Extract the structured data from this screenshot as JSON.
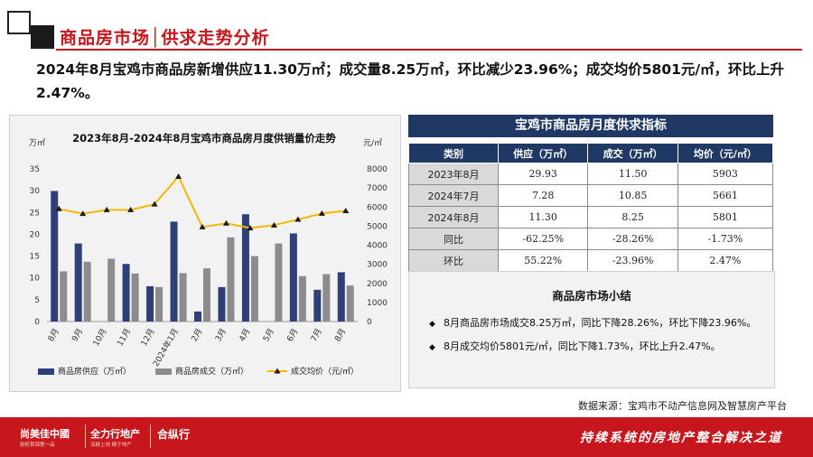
{
  "header": {
    "title": "商品房市场│供求走势分析"
  },
  "headline": "2024年8月宝鸡市商品房新增供应11.30万㎡；成交量8.25万㎡，环比减少23.96%；成交均价5801元/㎡，环比上升2.47%。",
  "chart_data": {
    "type": "bar+line",
    "title": "2023年8月-2024年8月宝鸡市商品房月度供销量价走势",
    "y_left_unit": "万㎡",
    "y_right_unit": "元/㎡",
    "y_left_range": [
      0,
      35
    ],
    "y_left_ticks": [
      "0",
      "5",
      "10",
      "15",
      "20",
      "25",
      "30",
      "35"
    ],
    "y_right_range": [
      0,
      8000
    ],
    "y_right_ticks": [
      "0",
      "1000",
      "2000",
      "3000",
      "4000",
      "5000",
      "6000",
      "7000",
      "8000"
    ],
    "categories": [
      "8月",
      "9月",
      "10月",
      "11月",
      "12月",
      "2024年1月",
      "2月",
      "3月",
      "4月",
      "5月",
      "6月",
      "7月",
      "8月"
    ],
    "series": [
      {
        "name": "商品房供应（万㎡）",
        "type": "bar",
        "axis": "left",
        "color": "#2e3f7a",
        "values": [
          29.93,
          17.9,
          0,
          13.2,
          8.1,
          22.9,
          2.3,
          7.9,
          24.6,
          0,
          20.2,
          7.28,
          11.3
        ]
      },
      {
        "name": "商品房成交（万㎡）",
        "type": "bar",
        "axis": "left",
        "color": "#8c8c8c",
        "values": [
          11.5,
          13.7,
          14.4,
          11.0,
          7.9,
          11.1,
          12.2,
          19.3,
          15.0,
          17.9,
          10.4,
          10.85,
          8.25
        ]
      },
      {
        "name": "成交均价（元/㎡）",
        "type": "line",
        "axis": "right",
        "color": "#f5b800",
        "values": [
          5903,
          5650,
          5850,
          5850,
          6150,
          7600,
          4950,
          5150,
          4900,
          5050,
          5350,
          5661,
          5801
        ]
      }
    ]
  },
  "table": {
    "title": "宝鸡市商品房月度供求指标",
    "headers": [
      "类别",
      "供应（万㎡）",
      "成交（万㎡）",
      "均价（元/㎡）"
    ],
    "rows": [
      [
        "2023年8月",
        "29.93",
        "11.50",
        "5903"
      ],
      [
        "2024年7月",
        "7.28",
        "10.85",
        "5661"
      ],
      [
        "2024年8月",
        "11.30",
        "8.25",
        "5801"
      ],
      [
        "同比",
        "-62.25%",
        "-28.26%",
        "-1.73%"
      ],
      [
        "环比",
        "55.22%",
        "-23.96%",
        "2.47%"
      ]
    ]
  },
  "summary": {
    "title": "商品房市场小结",
    "bullet_icon": "diamond-bullet-icon",
    "items": [
      "8月商品房市场成交8.25万㎡，同比下降28.26%，环比下降23.96%。",
      "8月成交均价5801元/㎡，同比下降1.73%，环比上升2.47%。"
    ]
  },
  "source": "数据来源：宝鸡市不动产信息网及智慧房产平台",
  "footer": {
    "logo1": "尚美佳中國",
    "logo1_sub": "厨柜首锦第一品",
    "logo2": "全力行地产",
    "logo2_sub": "深耕土地 精于地产",
    "logo3": "合纵行",
    "slogan": "持续系统的房地产整合解决之道"
  },
  "colors": {
    "brand_red": "#c8161d",
    "navy": "#203864",
    "supply_bar": "#2e3f7a",
    "deal_bar": "#8c8c8c",
    "price_line": "#f5b800"
  }
}
